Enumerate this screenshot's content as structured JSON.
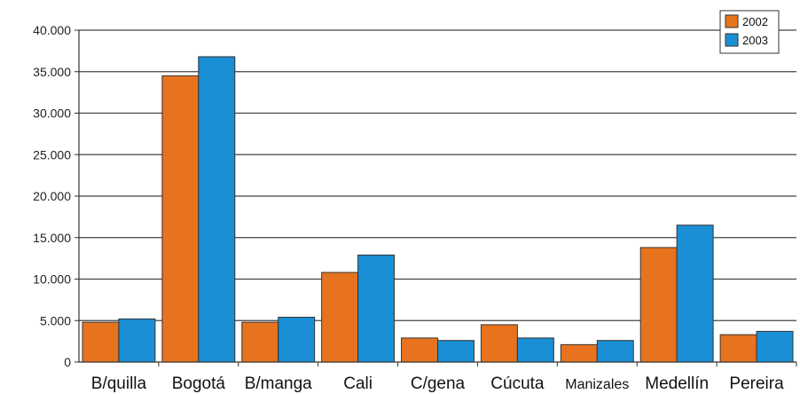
{
  "chart_data": {
    "type": "bar",
    "title": "",
    "xlabel": "",
    "ylabel": "",
    "categories": [
      "B/quilla",
      "Bogotá",
      "B/manga",
      "Cali",
      "C/gena",
      "Cúcuta",
      "Manizales",
      "Medellín",
      "Pereira"
    ],
    "series": [
      {
        "name": "2002",
        "color": "#e8731e",
        "values": [
          4800,
          34500,
          4800,
          10800,
          2900,
          4500,
          2100,
          13800,
          3300
        ]
      },
      {
        "name": "2003",
        "color": "#1a8fd6",
        "values": [
          5200,
          36800,
          5400,
          12900,
          2600,
          2900,
          2600,
          16500,
          3700
        ]
      }
    ],
    "ylim": [
      0,
      40000
    ],
    "yticks": [
      "0",
      "5.000",
      "10.000",
      "15.000",
      "20.000",
      "25.000",
      "30.000",
      "35.000",
      "40.000"
    ],
    "grid": true,
    "legend_position": "top-right"
  }
}
